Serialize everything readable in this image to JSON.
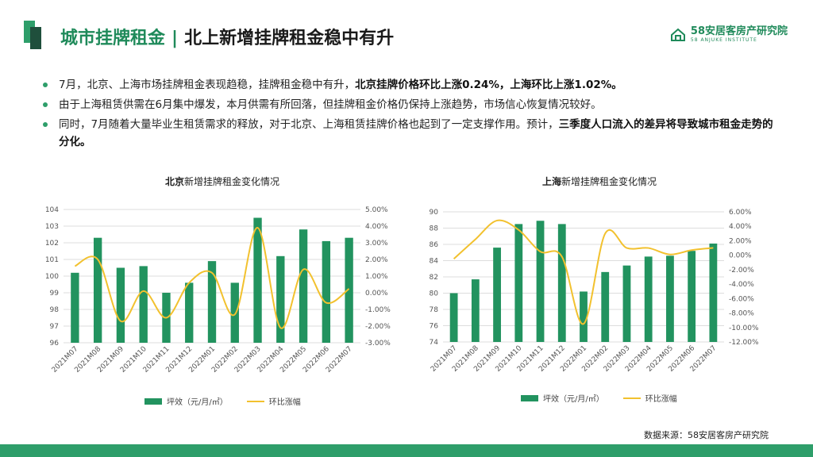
{
  "header": {
    "title_part1": "城市挂牌租金",
    "separator": "|",
    "title_part2": "北上新增挂牌租金稳中有升"
  },
  "logo": {
    "name": "58安居客房产研究院",
    "en": "58 ANJUKE INSTITUTE"
  },
  "bullets": [
    {
      "text": "7月，北京、上海市场挂牌租金表现趋稳，挂牌租金稳中有升，",
      "bold": "北京挂牌价格环比上涨0.24%，上海环比上涨1.02%。",
      "tail": ""
    },
    {
      "text": "由于上海租赁供需在6月集中爆发，本月供需有所回落，但挂牌租金价格仍保持上涨趋势，市场信心恢复情况较好。",
      "bold": "",
      "tail": ""
    },
    {
      "text": "同时，7月随着大量毕业生租赁需求的释放，对于北京、上海租赁挂牌价格也起到了一定支撑作用。预计，",
      "bold": "三季度人口流入的差异将导致城市租金走势的分化。",
      "tail": ""
    }
  ],
  "colors": {
    "brand": "#1f8a5a",
    "bar": "#22935f",
    "line": "#f2c12e"
  },
  "chart_data": [
    {
      "type": "bar",
      "title_bold": "北京",
      "title_rest": "新增挂牌租金变化情况",
      "categories": [
        "2021M07",
        "2021M08",
        "2021M09",
        "2021M10",
        "2021M11",
        "2021M12",
        "2022M01",
        "2022M02",
        "2022M03",
        "2022M04",
        "2022M05",
        "2022M06",
        "2022M07"
      ],
      "series": [
        {
          "name": "坪效（元/月/㎡）",
          "type": "bar",
          "axis": "left",
          "values": [
            100.2,
            102.3,
            100.5,
            100.6,
            99.0,
            99.6,
            100.9,
            99.6,
            103.5,
            101.2,
            102.8,
            102.1,
            102.3
          ]
        },
        {
          "name": "环比涨幅",
          "type": "line",
          "axis": "right",
          "values": [
            1.6,
            2.0,
            -1.7,
            0.1,
            -1.5,
            0.6,
            1.2,
            -1.3,
            3.9,
            -2.1,
            1.4,
            -0.6,
            0.24
          ]
        }
      ],
      "y_left": {
        "min": 96,
        "max": 104,
        "ticks": [
          "96",
          "97",
          "98",
          "99",
          "100",
          "101",
          "102",
          "103",
          "104"
        ]
      },
      "y_right": {
        "min": -3,
        "max": 5,
        "ticks": [
          "-3.00%",
          "-2.00%",
          "-1.00%",
          "0.00%",
          "1.00%",
          "2.00%",
          "3.00%",
          "4.00%",
          "5.00%"
        ]
      },
      "grid": true,
      "legend": "bottom"
    },
    {
      "type": "bar",
      "title_bold": "上海",
      "title_rest": "新增挂牌租金变化情况",
      "categories": [
        "2021M07",
        "2021M08",
        "2021M09",
        "2021M10",
        "2021M11",
        "2021M12",
        "2022M01",
        "2022M02",
        "2022M03",
        "2022M04",
        "2022M05",
        "2022M06",
        "2022M07"
      ],
      "series": [
        {
          "name": "坪效（元/月/㎡）",
          "type": "bar",
          "axis": "left",
          "values": [
            80.0,
            81.7,
            85.6,
            88.5,
            88.9,
            88.5,
            80.2,
            82.6,
            83.4,
            84.5,
            84.6,
            85.2,
            86.1
          ]
        },
        {
          "name": "环比涨幅",
          "type": "line",
          "axis": "right",
          "values": [
            -0.5,
            2.2,
            4.8,
            3.5,
            0.5,
            -0.2,
            -9.5,
            3.0,
            1.0,
            1.0,
            0.1,
            0.7,
            1.02
          ]
        }
      ],
      "y_left": {
        "min": 74,
        "max": 90,
        "ticks": [
          "74",
          "76",
          "78",
          "80",
          "82",
          "84",
          "86",
          "88",
          "90"
        ]
      },
      "y_right": {
        "min": -12,
        "max": 6,
        "ticks": [
          "-12.00%",
          "-10.00%",
          "-8.00%",
          "-6.00%",
          "-4.00%",
          "-2.00%",
          "0.00%",
          "2.00%",
          "4.00%",
          "6.00%"
        ]
      },
      "grid": true,
      "legend": "bottom"
    }
  ],
  "source": "数据来源：58安居客房产研究院"
}
